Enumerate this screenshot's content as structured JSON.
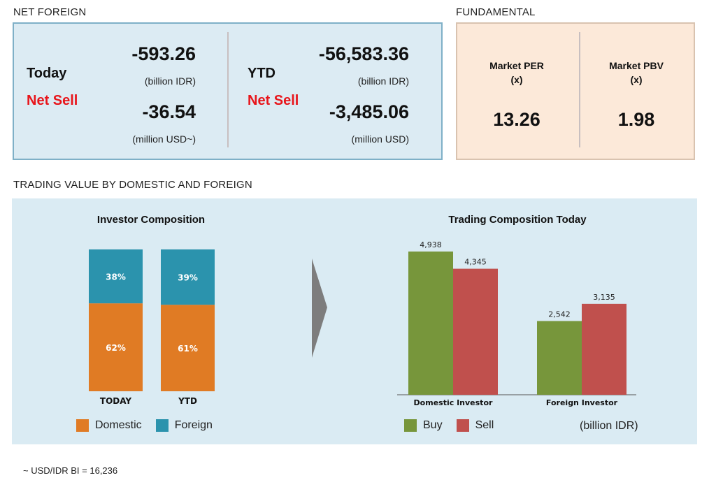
{
  "net_foreign": {
    "section_title": "NET FOREIGN",
    "today": {
      "label": "Today",
      "status": "Net Sell",
      "value_idr": "-593.26",
      "unit_idr": "(billion IDR)",
      "value_usd": "-36.54",
      "unit_usd": "(million USD~)"
    },
    "ytd": {
      "label": "YTD",
      "status": "Net Sell",
      "value_idr": "-56,583.36",
      "unit_idr": "(billion IDR)",
      "value_usd": "-3,485.06",
      "unit_usd": "(million USD)"
    }
  },
  "fundamental": {
    "section_title": "FUNDAMENTAL",
    "per": {
      "label_line1": "Market PER",
      "label_line2": "(x)",
      "value": "13.26"
    },
    "pbv": {
      "label_line1": "Market PBV",
      "label_line2": "(x)",
      "value": "1.98"
    }
  },
  "trading_section_title": "TRADING VALUE BY DOMESTIC AND FOREIGN",
  "footnote": "~ USD/IDR BI = 16,236",
  "colors": {
    "domestic": "#e07b24",
    "foreign": "#2b93ad",
    "buy": "#77963b",
    "sell": "#c0504d",
    "net_sell": "#e8151b"
  },
  "chart_data": [
    {
      "type": "bar",
      "stacked": true,
      "percent": true,
      "title": "Investor Composition",
      "categories": [
        "TODAY",
        "YTD"
      ],
      "series": [
        {
          "name": "Domestic",
          "values": [
            62,
            61
          ],
          "labels": [
            "62%",
            "61%"
          ]
        },
        {
          "name": "Foreign",
          "values": [
            38,
            39
          ],
          "labels": [
            "38%",
            "39%"
          ]
        }
      ],
      "ylim": [
        0,
        100
      ],
      "grid": false,
      "legend": "bottom"
    },
    {
      "type": "bar",
      "title": "Trading Composition Today",
      "categories": [
        "Domestic Investor",
        "Foreign Investor"
      ],
      "series": [
        {
          "name": "Buy",
          "values": [
            4938,
            2542
          ],
          "labels": [
            "4,938",
            "2,542"
          ]
        },
        {
          "name": "Sell",
          "values": [
            4345,
            3135
          ],
          "labels": [
            "4,345",
            "3,135"
          ]
        }
      ],
      "unit": "(billion IDR)",
      "ylim": [
        0,
        5000
      ],
      "grid": false,
      "legend": "bottom"
    }
  ]
}
